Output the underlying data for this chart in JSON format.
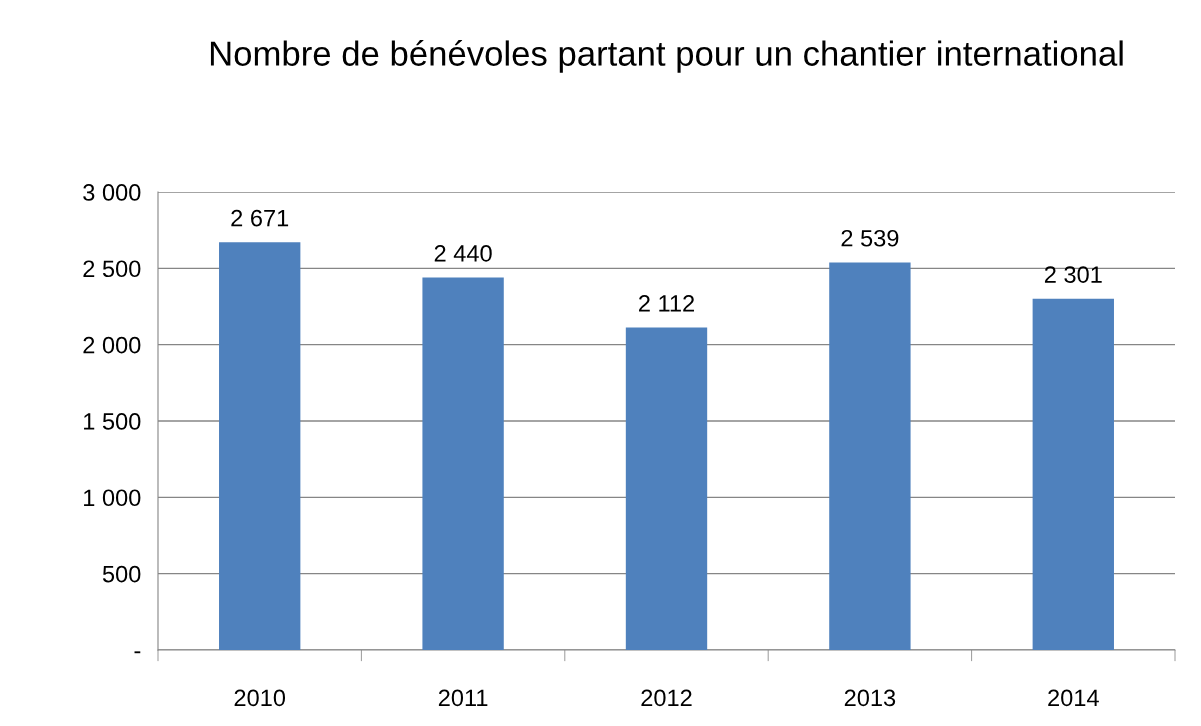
{
  "chart_data": {
    "type": "bar",
    "title": "Nombre de bénévoles partant pour un chantier international",
    "categories": [
      "2010",
      "2011",
      "2012",
      "2013",
      "2014"
    ],
    "values": [
      2671,
      2440,
      2112,
      2539,
      2301
    ],
    "value_labels": [
      "2 671",
      "2 440",
      "2 112",
      "2 539",
      "2 301"
    ],
    "color": "#4f81bd",
    "ylim": [
      0,
      3000
    ],
    "yticks": [
      {
        "value": 0,
        "label": "-"
      },
      {
        "value": 500,
        "label": "500"
      },
      {
        "value": 1000,
        "label": "1 000"
      },
      {
        "value": 1500,
        "label": "1 500"
      },
      {
        "value": 2000,
        "label": "2 000"
      },
      {
        "value": 2500,
        "label": "2 500"
      },
      {
        "value": 3000,
        "label": "3 000"
      }
    ],
    "grid": "y"
  }
}
